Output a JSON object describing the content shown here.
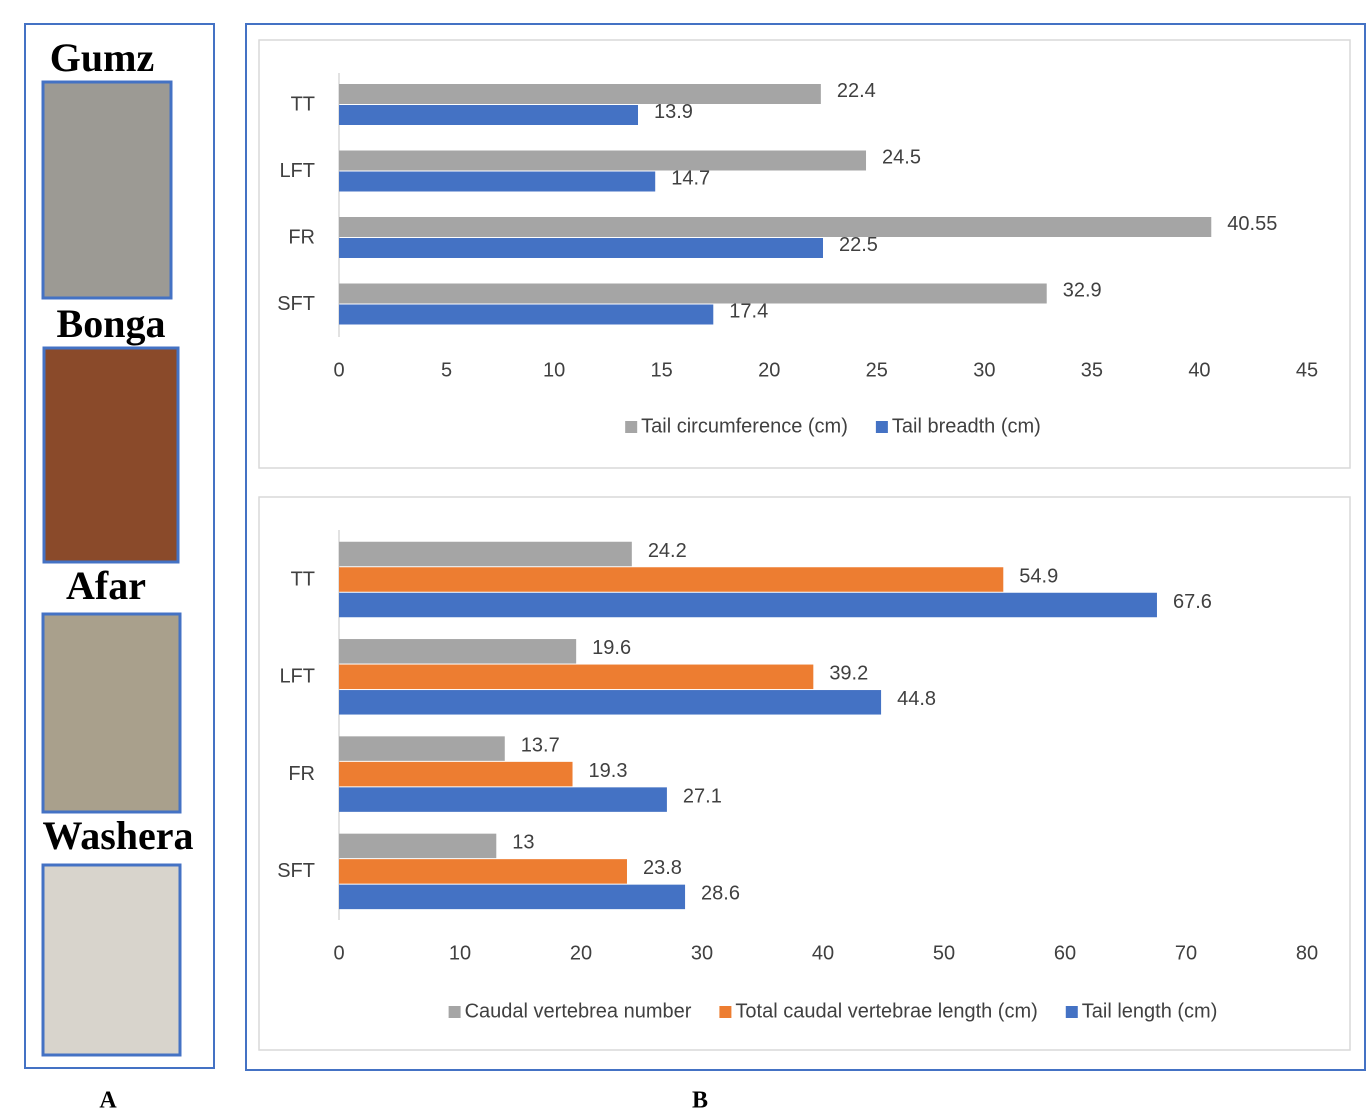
{
  "panels": {
    "a": {
      "label": "A",
      "animals": [
        "Gumz",
        "Bonga",
        "Afar",
        "Washera"
      ]
    },
    "b": {
      "label": "B"
    }
  },
  "chart_data": [
    {
      "type": "barh",
      "categories": [
        "TT",
        "LFT",
        "FR",
        "SFT"
      ],
      "series": [
        {
          "name": "Tail circumference (cm)",
          "color": "#a5a5a5",
          "values": [
            22.4,
            24.5,
            40.55,
            32.9
          ]
        },
        {
          "name": "Tail breadth (cm)",
          "color": "#4472c4",
          "values": [
            13.9,
            14.7,
            22.5,
            17.4
          ]
        }
      ],
      "xlim": [
        0,
        45
      ],
      "xticks": [
        0,
        5,
        10,
        15,
        20,
        25,
        30,
        35,
        40,
        45
      ],
      "grid": false,
      "legend": "bottom"
    },
    {
      "type": "barh",
      "categories": [
        "TT",
        "LFT",
        "FR",
        "SFT"
      ],
      "series": [
        {
          "name": "Caudal vertebrea number",
          "color": "#a5a5a5",
          "values": [
            24.2,
            19.6,
            13.7,
            13
          ]
        },
        {
          "name": "Total caudal vertebrae length (cm)",
          "color": "#ed7d31",
          "values": [
            54.9,
            39.2,
            19.3,
            23.8
          ]
        },
        {
          "name": "Tail length (cm)",
          "color": "#4472c4",
          "values": [
            67.6,
            44.8,
            27.1,
            28.6
          ]
        }
      ],
      "xlim": [
        0,
        80
      ],
      "xticks": [
        0,
        10,
        20,
        30,
        40,
        50,
        60,
        70,
        80
      ],
      "grid": false,
      "legend": "bottom"
    }
  ]
}
